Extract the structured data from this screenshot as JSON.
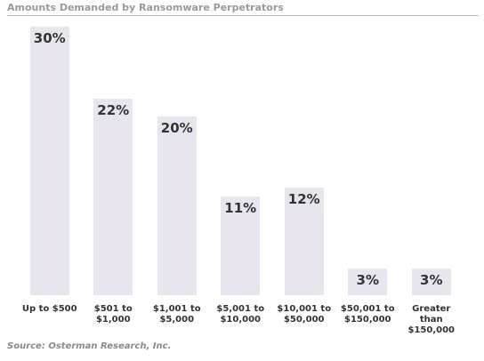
{
  "chart_data": {
    "type": "bar",
    "title": "Amounts Demanded by Ransomware Perpetrators",
    "categories": [
      "Up to $500",
      "$501 to $1,000",
      "$1,001 to $5,000",
      "$5,001 to $10,000",
      "$10,001 to $50,000",
      "$50,001 to $150,000",
      "Greater than $150,000"
    ],
    "values": [
      30,
      22,
      20,
      11,
      12,
      3,
      3
    ],
    "value_labels": [
      "30%",
      "22%",
      "20%",
      "11%",
      "12%",
      "3%",
      "3%"
    ],
    "color": "#e9e5ef",
    "source": "Source: Osterman Research, Inc."
  }
}
